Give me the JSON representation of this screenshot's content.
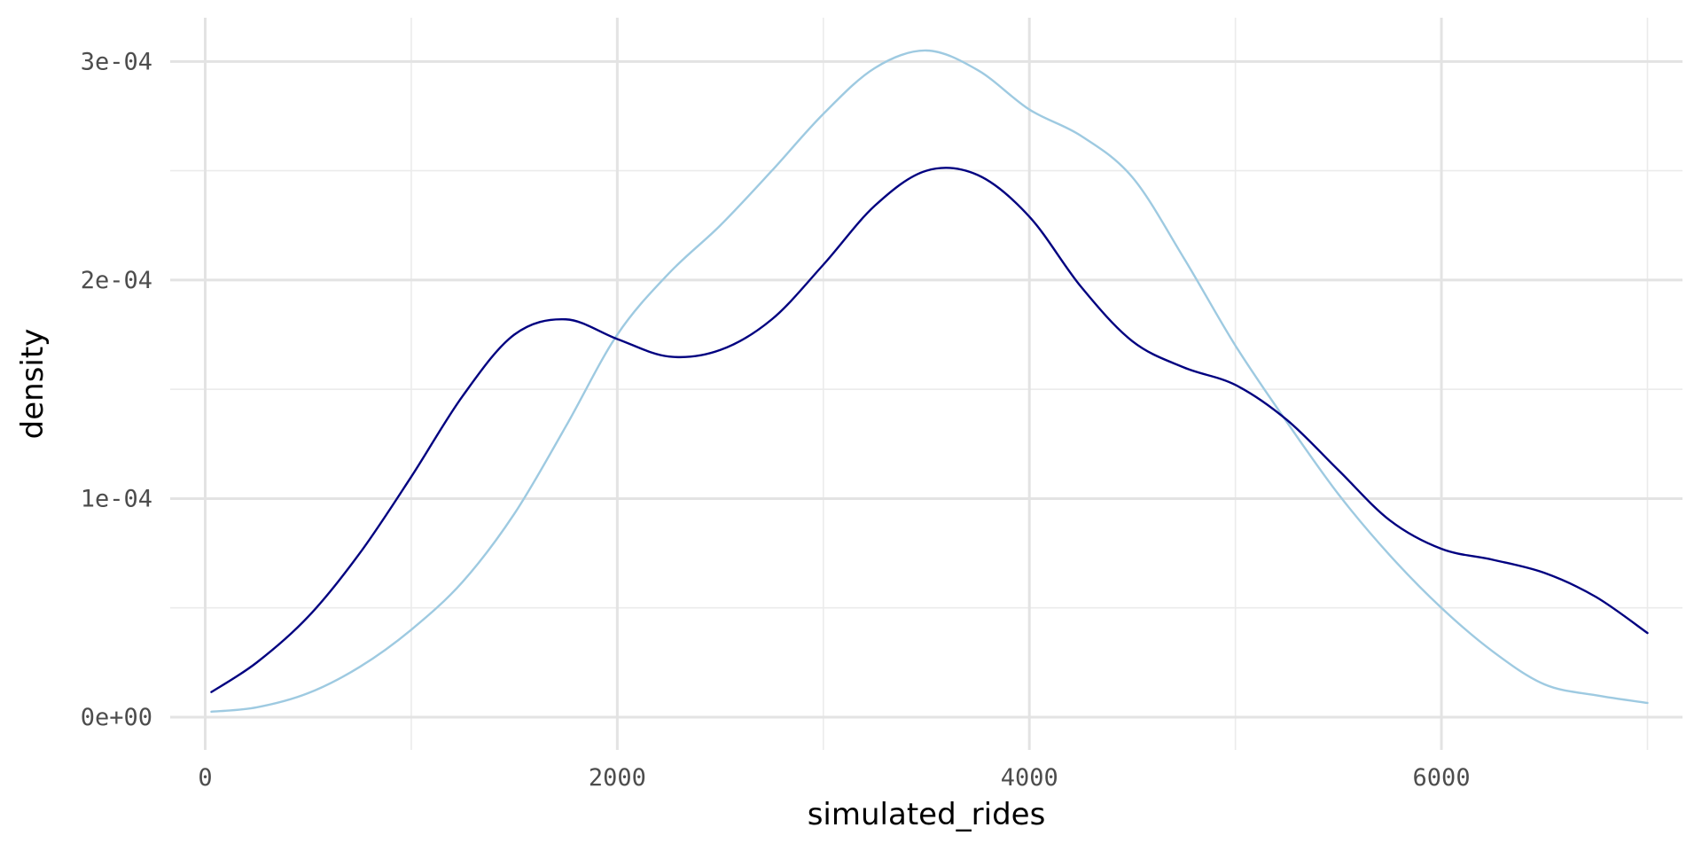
{
  "chart_data": {
    "type": "line",
    "title": "",
    "xlabel": "simulated_rides",
    "ylabel": "density",
    "xlim": [
      -170,
      7170
    ],
    "ylim": [
      -1.5e-05,
      0.00032
    ],
    "x_ticks": [
      0,
      2000,
      4000,
      6000
    ],
    "x_tick_labels": [
      "0",
      "2000",
      "4000",
      "6000"
    ],
    "y_ticks": [
      0,
      0.0001,
      0.0002,
      0.0003
    ],
    "y_tick_labels": [
      "0e+00",
      "1e-04",
      "2e-04",
      "3e-04"
    ],
    "x_minor_ticks": [
      1000,
      3000,
      5000,
      7000
    ],
    "y_minor_ticks": [
      5e-05,
      0.00015,
      0.00025
    ],
    "grid": true,
    "legend": "none",
    "series": [
      {
        "color": "#9ecae1",
        "points": [
          [
            30,
            2.5e-06
          ],
          [
            250,
            4.5e-06
          ],
          [
            500,
            1.1e-05
          ],
          [
            750,
            2.3e-05
          ],
          [
            1000,
            4e-05
          ],
          [
            1250,
            6.2e-05
          ],
          [
            1500,
            9.3e-05
          ],
          [
            1750,
            0.000133
          ],
          [
            2000,
            0.000175
          ],
          [
            2250,
            0.000203
          ],
          [
            2500,
            0.000225
          ],
          [
            2750,
            0.00025
          ],
          [
            3000,
            0.000276
          ],
          [
            3250,
            0.000297
          ],
          [
            3500,
            0.000305
          ],
          [
            3750,
            0.000296
          ],
          [
            4000,
            0.000278
          ],
          [
            4250,
            0.000266
          ],
          [
            4500,
            0.000247
          ],
          [
            4750,
            0.00021
          ],
          [
            5000,
            0.00017
          ],
          [
            5250,
            0.000135
          ],
          [
            5500,
            0.000102
          ],
          [
            5750,
            7.4e-05
          ],
          [
            6000,
            5e-05
          ],
          [
            6250,
            3e-05
          ],
          [
            6500,
            1.5e-05
          ],
          [
            6750,
            1e-05
          ],
          [
            7000,
            6.5e-06
          ]
        ]
      },
      {
        "color": "#000080",
        "points": [
          [
            30,
            1.15e-05
          ],
          [
            250,
            2.5e-05
          ],
          [
            500,
            4.6e-05
          ],
          [
            750,
            7.5e-05
          ],
          [
            1000,
            0.00011
          ],
          [
            1250,
            0.000147
          ],
          [
            1500,
            0.000175
          ],
          [
            1750,
            0.000182
          ],
          [
            2000,
            0.000173
          ],
          [
            2250,
            0.000165
          ],
          [
            2500,
            0.000168
          ],
          [
            2750,
            0.000182
          ],
          [
            3000,
            0.000207
          ],
          [
            3250,
            0.000234
          ],
          [
            3500,
            0.00025
          ],
          [
            3750,
            0.000248
          ],
          [
            4000,
            0.000229
          ],
          [
            4250,
            0.000197
          ],
          [
            4500,
            0.000172
          ],
          [
            4750,
            0.00016
          ],
          [
            5000,
            0.000152
          ],
          [
            5250,
            0.000136
          ],
          [
            5500,
            0.000113
          ],
          [
            5750,
            9e-05
          ],
          [
            6000,
            7.7e-05
          ],
          [
            6250,
            7.2e-05
          ],
          [
            6500,
            6.6e-05
          ],
          [
            6750,
            5.5e-05
          ],
          [
            7000,
            3.85e-05
          ]
        ]
      }
    ]
  }
}
